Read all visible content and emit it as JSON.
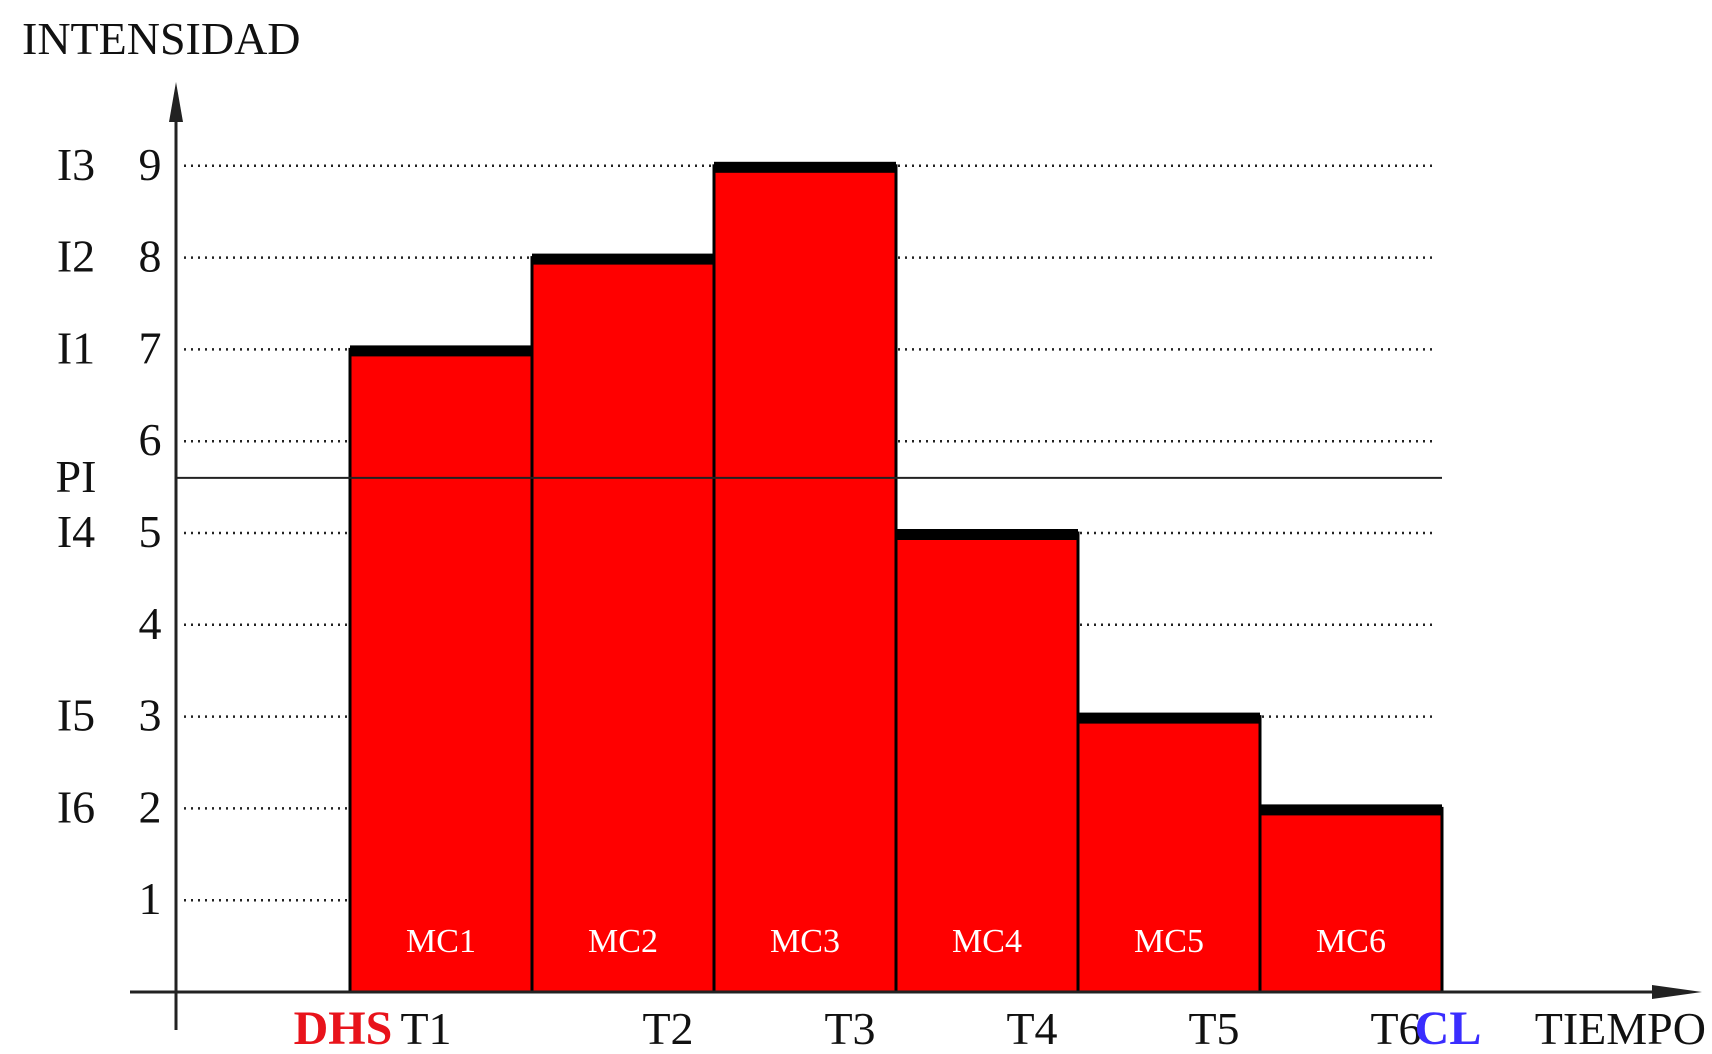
{
  "chart_data": {
    "type": "bar",
    "title": "",
    "ylabel": "INTENSIDAD",
    "xlabel": "TIEMPO",
    "ylim": [
      0,
      9
    ],
    "yticks": [
      "1",
      "2",
      "3",
      "4",
      "5",
      "6",
      "7",
      "8",
      "9"
    ],
    "grid": true,
    "categories": [
      "T1",
      "T2",
      "T3",
      "T4",
      "T5",
      "T6"
    ],
    "bar_labels": [
      "MC1",
      "MC2",
      "MC3",
      "MC4",
      "MC5",
      "MC6"
    ],
    "values": [
      7,
      8,
      9,
      5,
      3,
      2
    ],
    "threshold": {
      "label": "PI",
      "value": 5.6
    },
    "level_labels": [
      {
        "label": "I1",
        "value": 7
      },
      {
        "label": "I2",
        "value": 8
      },
      {
        "label": "I3",
        "value": 9
      },
      {
        "label": "I4",
        "value": 5
      },
      {
        "label": "I5",
        "value": 3
      },
      {
        "label": "I6",
        "value": 2
      }
    ],
    "start_marker": {
      "label": "DHS",
      "color": "#e8131b"
    },
    "end_marker": {
      "label": "CL",
      "color": "#3a2dff"
    },
    "bar_color": "#ff0000"
  }
}
